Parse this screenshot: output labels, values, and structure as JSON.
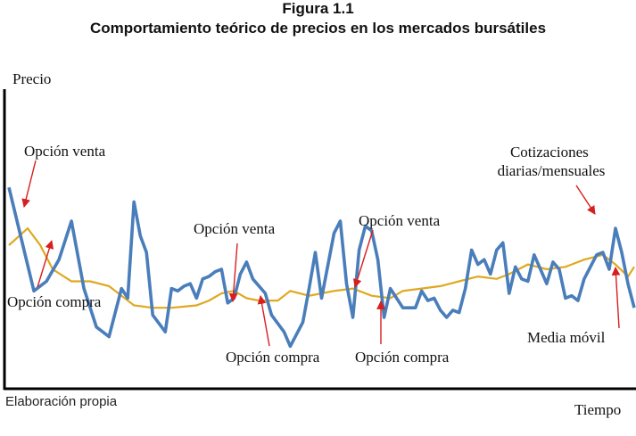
{
  "figure": {
    "label": "Figura 1.1",
    "title": "Comportamiento teórico de precios en los mercados bursátiles",
    "source": "Elaboración propia"
  },
  "colors": {
    "price": "#4a7ebb",
    "moving_average": "#e0a820",
    "arrow": "#d81e1e",
    "axis": "#000000"
  },
  "chart_data": {
    "type": "line",
    "title": "Comportamiento teórico de precios en los mercados bursátiles",
    "xlabel": "Tiempo",
    "ylabel": "Precio",
    "xlim": [
      0,
      100
    ],
    "ylim": [
      0,
      100
    ],
    "grid": false,
    "legend": "none",
    "series": [
      {
        "x": [
          0,
          4,
          6,
          8,
          10,
          12,
          14,
          16,
          18,
          19,
          20,
          21,
          22,
          23,
          25,
          26,
          27,
          28,
          29,
          30,
          31,
          32,
          33,
          34,
          35,
          36,
          37,
          38,
          39,
          41,
          42,
          44,
          45,
          47,
          48,
          49,
          50,
          52,
          53,
          54,
          55,
          56,
          57,
          58,
          59,
          60,
          61,
          63,
          64,
          65,
          66,
          67,
          68,
          69,
          70,
          71,
          72,
          73,
          74,
          75,
          76,
          77,
          78,
          79,
          80,
          81,
          82,
          83,
          84,
          85,
          86,
          87,
          88,
          89,
          90,
          91,
          92,
          93,
          94,
          95,
          96,
          97,
          98,
          99,
          100
        ],
        "values": [
          74,
          31,
          35,
          44,
          60,
          32,
          16,
          12,
          32,
          28,
          68,
          54,
          47,
          21,
          14,
          32,
          31,
          33,
          34,
          28,
          36,
          37,
          39,
          40,
          26,
          28,
          38,
          43,
          36,
          30,
          21,
          14,
          8,
          18,
          32,
          47,
          28,
          55,
          60,
          34,
          20,
          48,
          58,
          56,
          44,
          20,
          32,
          24,
          24,
          24,
          31,
          27,
          28,
          23,
          20,
          23,
          22,
          32,
          48,
          42,
          44,
          38,
          48,
          51,
          30,
          41,
          36,
          35,
          46,
          40,
          34,
          43,
          40,
          28,
          29,
          27,
          36,
          41,
          46,
          47,
          40,
          57,
          47,
          34,
          24
        ]
      },
      {
        "x": [
          0,
          3,
          5,
          7,
          10,
          13,
          16,
          20,
          23,
          26,
          30,
          32,
          34,
          36,
          38,
          40,
          43,
          45,
          48,
          52,
          55,
          58,
          61,
          63,
          66,
          69,
          72,
          75,
          78,
          80,
          83,
          86,
          89,
          92,
          95,
          97,
          99,
          100
        ],
        "values": [
          50,
          57,
          50,
          40,
          35,
          35,
          33,
          25,
          24,
          24,
          25,
          27,
          30,
          31,
          28,
          27,
          27,
          31,
          29,
          31,
          32,
          29,
          28,
          31,
          32,
          33,
          35,
          37,
          36,
          38,
          42,
          40,
          41,
          44,
          46,
          42,
          37,
          41
        ]
      }
    ],
    "annotations": [
      "Opción venta",
      "Opción compra",
      "Opción venta",
      "Opción compra",
      "Opción venta",
      "Opción compra",
      "Cotizaciones diarias/mensuales",
      "Media móvil"
    ]
  }
}
